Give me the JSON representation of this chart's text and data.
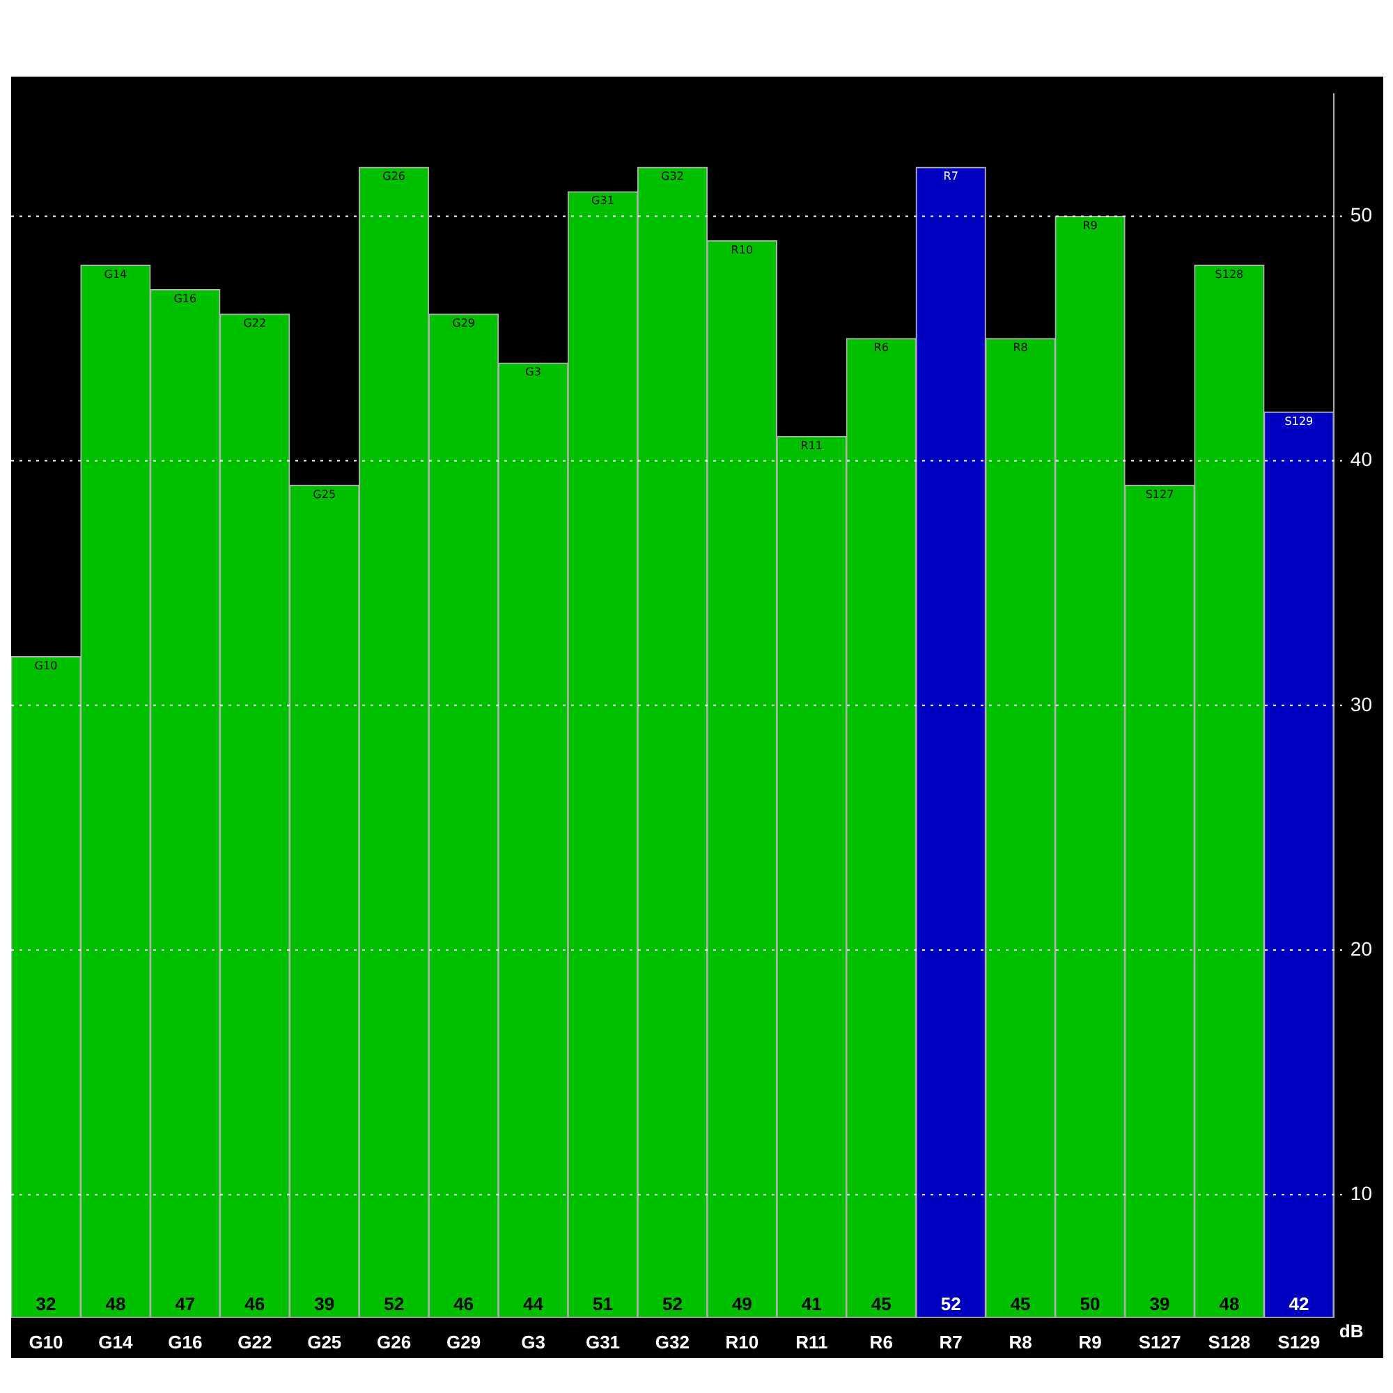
{
  "chart_data": {
    "type": "bar",
    "ylabel": "dB",
    "categories": [
      "G10",
      "G14",
      "G16",
      "G22",
      "G25",
      "G26",
      "G29",
      "G3",
      "G31",
      "G32",
      "R10",
      "R11",
      "R6",
      "R7",
      "R8",
      "R9",
      "S127",
      "S128",
      "S129"
    ],
    "values": [
      32,
      48,
      47,
      46,
      39,
      52,
      46,
      44,
      51,
      52,
      49,
      41,
      45,
      52,
      45,
      50,
      39,
      48,
      42
    ],
    "colors": [
      "#00c000",
      "#00c000",
      "#00c000",
      "#00c000",
      "#00c000",
      "#00c000",
      "#00c000",
      "#00c000",
      "#00c000",
      "#00c000",
      "#00c000",
      "#00c000",
      "#00c000",
      "#0000c0",
      "#00c000",
      "#00c000",
      "#00c000",
      "#00c000",
      "#0000c0"
    ],
    "ylim": [
      5,
      55
    ],
    "yticks": [
      10,
      20,
      30,
      40,
      50
    ],
    "grid": "y",
    "data_labels": true,
    "legend": false
  }
}
